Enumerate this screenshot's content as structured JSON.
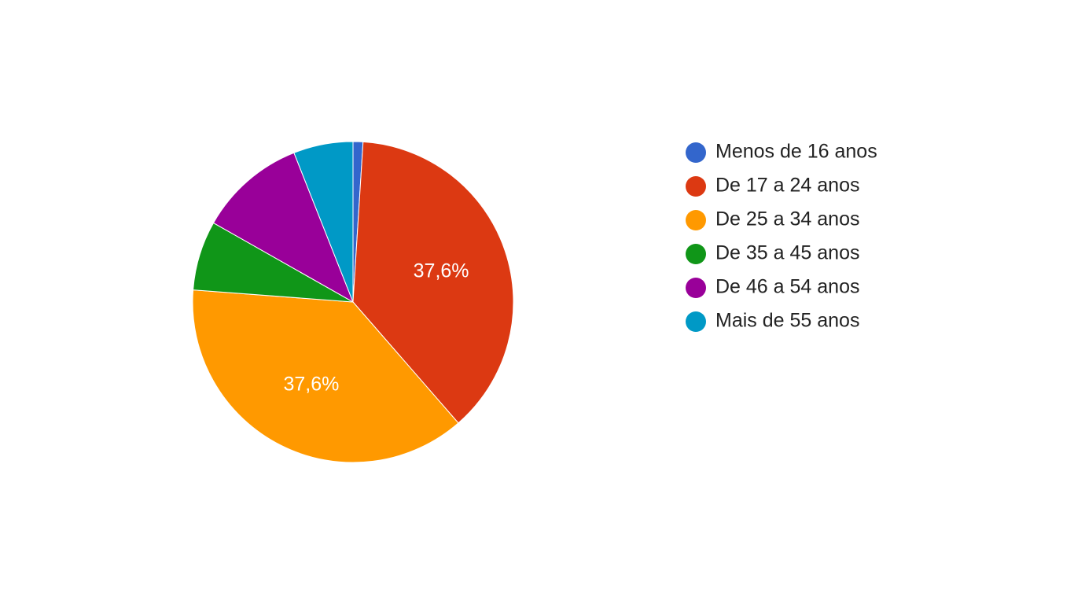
{
  "chart_data": {
    "type": "pie",
    "categories": [
      "Menos de 16 anos",
      "De 17 a 24 anos",
      "De 25 a 34 anos",
      "De 35 a 45 anos",
      "De 46 a 54 anos",
      "Mais de 55 anos"
    ],
    "values": [
      1.0,
      37.6,
      37.6,
      7.0,
      10.8,
      6.0
    ],
    "data_labels": [
      "",
      "37,6%",
      "37,6%",
      "",
      "",
      ""
    ],
    "colors": [
      "#3366cc",
      "#dc3912",
      "#ff9900",
      "#109618",
      "#990099",
      "#0099c6"
    ],
    "start_angle_deg": 90,
    "direction": "clockwise",
    "legend": {
      "position": "right"
    }
  }
}
